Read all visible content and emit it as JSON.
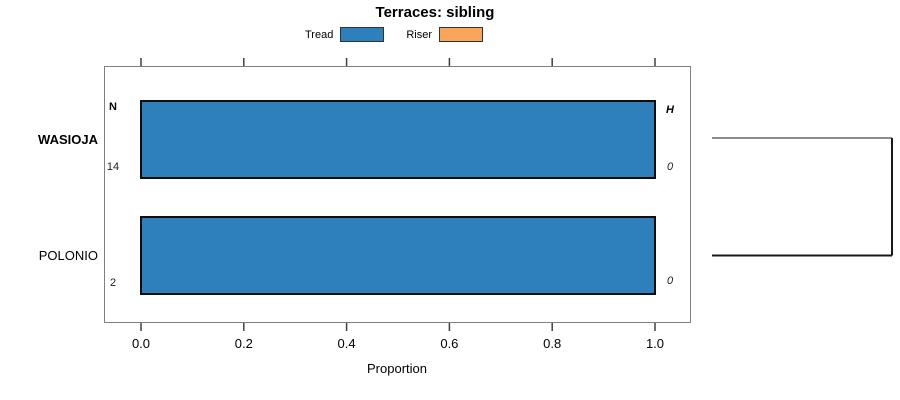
{
  "chart_data": {
    "type": "bar",
    "orientation": "horizontal",
    "title": "Terraces: sibling",
    "xlabel": "Proportion",
    "ylabel": "",
    "xlim": [
      0.0,
      1.0
    ],
    "xticks": {
      "values": [
        0.0,
        0.2,
        0.4,
        0.6,
        0.8,
        1.0
      ],
      "labels": [
        "0.0",
        "0.2",
        "0.4",
        "0.6",
        "0.8",
        "1.0"
      ]
    },
    "grid": false,
    "legend": {
      "position": "top",
      "entries": [
        {
          "label": "Tread",
          "color": "#2E80BC"
        },
        {
          "label": "Riser",
          "color": "#F9A65C"
        }
      ]
    },
    "categories": [
      "WASIOJA",
      "POLONIO"
    ],
    "category_emphasis": [
      true,
      false
    ],
    "series": [
      {
        "name": "Tread",
        "color": "#2E80BC",
        "values": [
          1.0,
          1.0
        ]
      },
      {
        "name": "Riser",
        "color": "#F9A65C",
        "values": [
          0.0,
          0.0
        ]
      }
    ],
    "row_annotations": {
      "left_header": "N",
      "right_header": "H",
      "rows": [
        {
          "category": "WASIOJA",
          "N": "14",
          "H": "0"
        },
        {
          "category": "POLONIO",
          "N": "2",
          "H": "0"
        }
      ]
    },
    "right_margin_bracket": {
      "connects": [
        "WASIOJA",
        "POLONIO"
      ]
    }
  },
  "style": {
    "bar_fill": "#2E80BC",
    "bar_border": "#0d0d0d",
    "box_border": "#7f7f7f",
    "tick_color": "#404040",
    "bracket_top_color": "#8c8c8c",
    "bracket_main_color": "#1a1a1a"
  }
}
